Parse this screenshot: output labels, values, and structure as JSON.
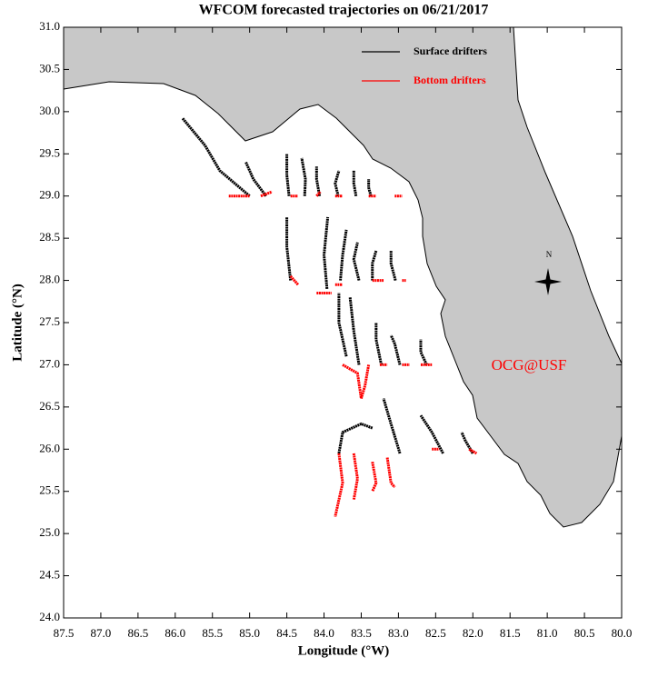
{
  "chart_data": {
    "type": "trajectory",
    "title": "WFCOM forecasted trajectories on 06/21/2017",
    "x_label": "Longitude (°W)",
    "y_label": "Latitude (°N)",
    "annotations": {
      "logo": "OCG@USF",
      "north": "N"
    },
    "xlim": [
      87.5,
      80.0
    ],
    "ylim": [
      24.0,
      31.0
    ],
    "xticks": [
      87.5,
      {
        "value": 87,
        "label": "87.0"
      },
      86.5,
      {
        "value": 86,
        "label": "86.0"
      },
      85.5,
      {
        "value": 85,
        "label": "85.0"
      },
      84.5,
      {
        "value": 84,
        "label": "84.0"
      },
      83.5,
      {
        "value": 83,
        "label": "83.0"
      },
      82.5,
      {
        "value": 82,
        "label": "82.0"
      },
      81.5,
      {
        "value": 81,
        "label": "81.0"
      },
      80.5,
      {
        "value": 80,
        "label": "80.0"
      }
    ],
    "yticks": [
      {
        "value": 24,
        "label": "24.0"
      },
      24.5,
      {
        "value": 25,
        "label": "25.0"
      },
      25.5,
      {
        "value": 26,
        "label": "26.0"
      },
      26.5,
      {
        "value": 27,
        "label": "27.0"
      },
      27.5,
      {
        "value": 28,
        "label": "28.0"
      },
      28.5,
      {
        "value": 29,
        "label": "29.0"
      },
      29.5,
      {
        "value": 30,
        "label": "30.0"
      },
      30.5,
      {
        "value": 31,
        "label": "31.0"
      }
    ],
    "series": [
      {
        "name": "Surface drifters",
        "color": "#000000",
        "tracks": [
          {
            "x": [
              85.0,
              85.4,
              85.6,
              85.9
            ],
            "y": [
              29.0,
              29.3,
              29.6,
              29.92
            ]
          },
          {
            "x": [
              84.78,
              84.95,
              85.05
            ],
            "y": [
              29.0,
              29.2,
              29.4
            ]
          },
          {
            "x": [
              84.47,
              84.5,
              84.5
            ],
            "y": [
              29.0,
              29.25,
              29.5
            ]
          },
          {
            "x": [
              84.26,
              84.25,
              84.3
            ],
            "y": [
              29.0,
              29.2,
              29.45
            ]
          },
          {
            "x": [
              84.06,
              84.1,
              84.1
            ],
            "y": [
              29.0,
              29.2,
              29.35
            ]
          },
          {
            "x": [
              83.81,
              83.85,
              83.8
            ],
            "y": [
              29.0,
              29.15,
              29.3
            ]
          },
          {
            "x": [
              83.57,
              83.6,
              83.6
            ],
            "y": [
              29.0,
              29.15,
              29.3
            ]
          },
          {
            "x": [
              83.37,
              83.4,
              83.4
            ],
            "y": [
              29.0,
              29.1,
              29.2
            ]
          },
          {
            "x": [
              84.45,
              84.5,
              84.5
            ],
            "y": [
              28.0,
              28.4,
              28.75
            ]
          },
          {
            "x": [
              83.96,
              84.0,
              83.95
            ],
            "y": [
              27.9,
              28.3,
              28.75
            ]
          },
          {
            "x": [
              83.78,
              83.75,
              83.7
            ],
            "y": [
              28.0,
              28.3,
              28.6
            ]
          },
          {
            "x": [
              83.53,
              83.6,
              83.55
            ],
            "y": [
              28.0,
              28.25,
              28.45
            ]
          },
          {
            "x": [
              83.35,
              83.35,
              83.3
            ],
            "y": [
              28.0,
              28.2,
              28.35
            ]
          },
          {
            "x": [
              83.04,
              83.1,
              83.1
            ],
            "y": [
              28.0,
              28.2,
              28.35
            ]
          },
          {
            "x": [
              83.7,
              83.8,
              83.8
            ],
            "y": [
              27.1,
              27.5,
              27.85
            ]
          },
          {
            "x": [
              83.53,
              83.6,
              83.65
            ],
            "y": [
              27.0,
              27.4,
              27.8
            ]
          },
          {
            "x": [
              83.23,
              83.3,
              83.3
            ],
            "y": [
              27.0,
              27.3,
              27.5
            ]
          },
          {
            "x": [
              82.98,
              83.05,
              83.1
            ],
            "y": [
              27.0,
              27.25,
              27.35
            ]
          },
          {
            "x": [
              82.62,
              82.7,
              82.7
            ],
            "y": [
              27.0,
              27.15,
              27.3
            ]
          },
          {
            "x": [
              83.8,
              83.75,
              83.5,
              83.35
            ],
            "y": [
              25.95,
              26.2,
              26.3,
              26.25
            ]
          },
          {
            "x": [
              82.98,
              83.1,
              83.2
            ],
            "y": [
              25.95,
              26.3,
              26.6
            ]
          },
          {
            "x": [
              82.4,
              82.55,
              82.7
            ],
            "y": [
              25.95,
              26.2,
              26.4
            ]
          },
          {
            "x": [
              82.0,
              82.1,
              82.15
            ],
            "y": [
              25.95,
              26.1,
              26.2
            ]
          }
        ]
      },
      {
        "name": "Bottom drifters",
        "color": "#ff0000",
        "tracks": [
          {
            "x": [
              85.28,
              85.0
            ],
            "y": [
              29.0,
              29.0
            ]
          },
          {
            "x": [
              84.85,
              84.7
            ],
            "y": [
              29.0,
              29.05
            ]
          },
          {
            "x": [
              84.45,
              84.35
            ],
            "y": [
              29.0,
              29.0
            ]
          },
          {
            "x": [
              84.1,
              84.05
            ],
            "y": [
              29.0,
              29.05
            ]
          },
          {
            "x": [
              83.85,
              83.75
            ],
            "y": [
              29.0,
              29.0
            ]
          },
          {
            "x": [
              83.4,
              83.3
            ],
            "y": [
              29.0,
              29.0
            ]
          },
          {
            "x": [
              83.05,
              82.95
            ],
            "y": [
              29.0,
              29.0
            ]
          },
          {
            "x": [
              84.45,
              84.35
            ],
            "y": [
              28.05,
              27.95
            ]
          },
          {
            "x": [
              84.1,
              83.9
            ],
            "y": [
              27.85,
              27.85
            ]
          },
          {
            "x": [
              83.85,
              83.75
            ],
            "y": [
              27.95,
              27.95
            ]
          },
          {
            "x": [
              83.35,
              83.2
            ],
            "y": [
              28.0,
              28.0
            ]
          },
          {
            "x": [
              82.95,
              82.9
            ],
            "y": [
              28.0,
              28.0
            ]
          },
          {
            "x": [
              83.75,
              83.55,
              83.5
            ],
            "y": [
              27.0,
              26.9,
              26.6
            ]
          },
          {
            "x": [
              83.4,
              83.45,
              83.5
            ],
            "y": [
              27.0,
              26.75,
              26.6
            ]
          },
          {
            "x": [
              83.25,
              83.15
            ],
            "y": [
              27.0,
              27.0
            ]
          },
          {
            "x": [
              82.95,
              82.85
            ],
            "y": [
              27.0,
              27.0
            ]
          },
          {
            "x": [
              82.7,
              82.55
            ],
            "y": [
              27.0,
              27.0
            ]
          },
          {
            "x": [
              83.8,
              83.75,
              83.85
            ],
            "y": [
              25.95,
              25.6,
              25.2
            ]
          },
          {
            "x": [
              83.6,
              83.55,
              83.6
            ],
            "y": [
              25.95,
              25.65,
              25.4
            ]
          },
          {
            "x": [
              83.35,
              83.3,
              83.35
            ],
            "y": [
              25.85,
              25.6,
              25.5
            ]
          },
          {
            "x": [
              83.15,
              83.1,
              83.05
            ],
            "y": [
              25.9,
              25.6,
              25.55
            ]
          },
          {
            "x": [
              82.55,
              82.45
            ],
            "y": [
              26.0,
              26.0
            ]
          },
          {
            "x": [
              82.05,
              81.95
            ],
            "y": [
              26.0,
              25.95
            ]
          }
        ]
      }
    ]
  }
}
